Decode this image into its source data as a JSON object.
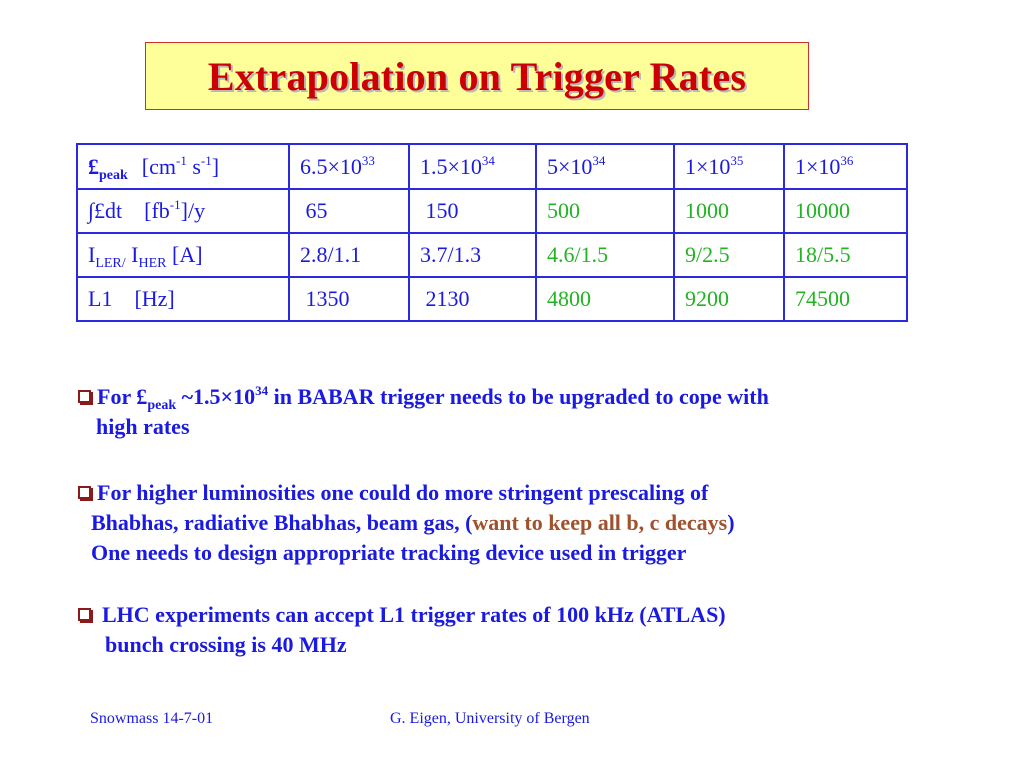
{
  "slide_title": "Extrapolation on Trigger Rates",
  "table": {
    "rows": [
      {
        "label": {
          "main": "£",
          "sub": "peak",
          "unit_pre": "[cm",
          "sup1": "-1",
          "mid": " s",
          "sup2": "-1",
          "unit_post": "]"
        },
        "values": [
          {
            "base": "6.5×10",
            "exp": "33"
          },
          {
            "base": "1.5×10",
            "exp": "34"
          },
          {
            "base": "5×10",
            "exp": "34"
          },
          {
            "base": "1×10",
            "exp": "35"
          },
          {
            "base": "1×10",
            "exp": "36"
          }
        ]
      },
      {
        "label": {
          "main": "∫£dt",
          "unit_pre": "[fb",
          "sup1": "-1",
          "unit_post": "]/y"
        },
        "values": [
          " 65",
          " 150",
          "500",
          "1000",
          "10000"
        ]
      },
      {
        "label": {
          "i1": "I",
          "sub1": "LER/",
          "i2": " I",
          "sub2": "HER",
          "unit": " [A]"
        },
        "values": [
          "2.8/1.1",
          "3.7/1.3",
          "4.6/1.5",
          "9/2.5",
          "18/5.5"
        ]
      },
      {
        "label": {
          "main": "L1",
          "unit": "[Hz]"
        },
        "values": [
          " 1350",
          " 2130",
          "4800",
          "9200",
          "74500"
        ]
      }
    ],
    "extrapolated_color": "#22b322",
    "table_color": "#1a1ae0"
  },
  "bullets": [
    {
      "icon": "checkbox-bullet-icon",
      "line1": {
        "a": "For £",
        "sub": "peak",
        "b": " ~1.5×10",
        "sup": "34",
        "c": " in BABAR trigger needs to be upgraded to cope with"
      },
      "line2": "high rates"
    },
    {
      "icon": "checkbox-bullet-icon",
      "line1": "For higher luminosities one could do more stringent prescaling of",
      "line2": {
        "a": "Bhabhas, radiative Bhabhas, beam gas, (",
        "highlight": "want to keep all b, c decays",
        "b": ")"
      },
      "line3": "One needs to design appropriate tracking device used in trigger"
    },
    {
      "icon": "checkbox-bullet-icon",
      "line1": "LHC experiments can accept L1 trigger rates of 100 kHz (ATLAS)",
      "line2": "bunch crossing is 40 MHz"
    }
  ],
  "footer": {
    "left": "Snowmass 14-7-01",
    "right": "G. Eigen, University of Bergen"
  },
  "colors": {
    "title": "#cc0000",
    "title_box_bg": "#ffff99",
    "text": "#1a1ae0",
    "highlight": "#a0522d",
    "bullet_icon": "#8b1a1a"
  }
}
